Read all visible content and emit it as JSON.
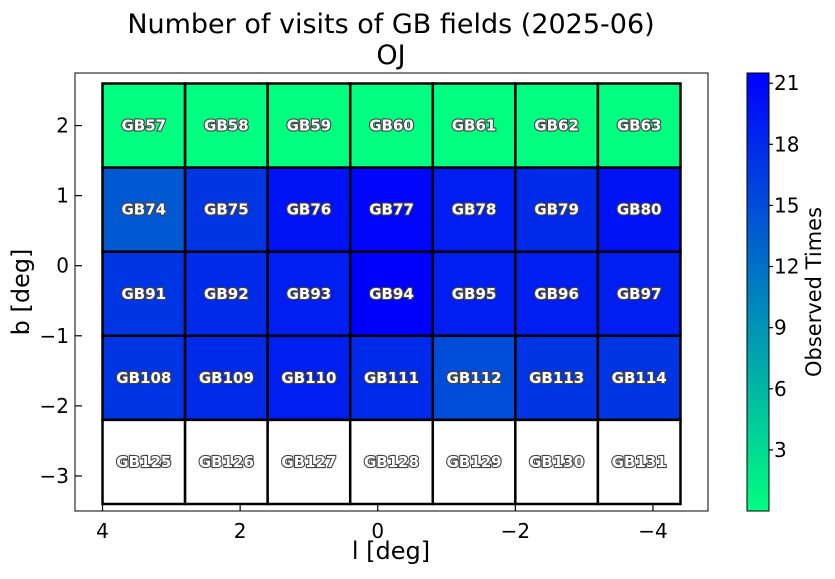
{
  "chart_data": {
    "type": "heatmap",
    "title": "Number of visits of GB fields (2025-06)",
    "subtitle": "OJ",
    "xlabel": "l [deg]",
    "ylabel": "b [deg]",
    "xlim": [
      4.4,
      -4.8
    ],
    "ylim": [
      -3.5,
      2.75
    ],
    "xticks": [
      4,
      2,
      0,
      -2,
      -4
    ],
    "yticks": [
      2,
      1,
      0,
      -1,
      -2,
      -3
    ],
    "xtick_labels": [
      "4",
      "2",
      "0",
      "−2",
      "−4"
    ],
    "ytick_labels": [
      "2",
      "1",
      "0",
      "−1",
      "−2",
      "−3"
    ],
    "grid": false,
    "colorbar": {
      "label": "Observed Times",
      "range": [
        0,
        21.5
      ],
      "ticks": [
        3,
        6,
        9,
        12,
        15,
        18,
        21
      ],
      "tick_labels": [
        "3",
        "6",
        "9",
        "12",
        "15",
        "18",
        "21"
      ],
      "color_low": "#00ff80",
      "color_high": "#0000ff"
    },
    "columns_l": [
      4.0,
      2.8,
      1.6,
      0.4,
      -0.8,
      -2.0,
      -3.2
    ],
    "column_width": 1.2,
    "rows_b": [
      2.6,
      1.4,
      0.2,
      -1.0,
      -2.2
    ],
    "row_height": 1.2,
    "fields": [
      [
        "GB57",
        "GB58",
        "GB59",
        "GB60",
        "GB61",
        "GB62",
        "GB63"
      ],
      [
        "GB74",
        "GB75",
        "GB76",
        "GB77",
        "GB78",
        "GB79",
        "GB80"
      ],
      [
        "GB91",
        "GB92",
        "GB93",
        "GB94",
        "GB95",
        "GB96",
        "GB97"
      ],
      [
        "GB108",
        "GB109",
        "GB110",
        "GB111",
        "GB112",
        "GB113",
        "GB114"
      ],
      [
        "GB125",
        "GB126",
        "GB127",
        "GB128",
        "GB129",
        "GB130",
        "GB131"
      ]
    ],
    "values": [
      [
        0,
        0,
        0,
        0,
        0,
        0,
        0
      ],
      [
        14,
        17,
        20,
        21,
        19,
        18,
        20
      ],
      [
        17,
        18,
        19,
        22,
        19,
        19,
        19
      ],
      [
        17,
        18,
        19,
        18,
        15,
        17,
        17
      ],
      [
        null,
        null,
        null,
        null,
        null,
        null,
        null
      ]
    ]
  }
}
